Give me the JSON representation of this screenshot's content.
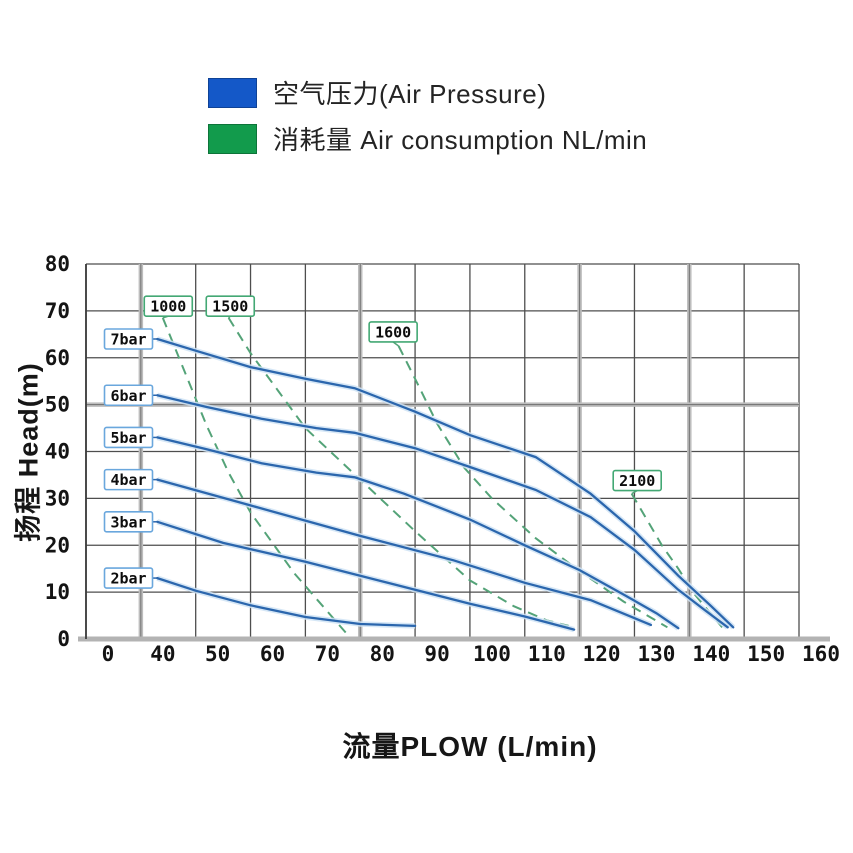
{
  "legend": {
    "items": [
      {
        "swatch_color": "#1458c8",
        "label": "空气压力(Air Pressure)"
      },
      {
        "swatch_color": "#129b4c",
        "label": "消耗量 Air consumption NL/min"
      }
    ]
  },
  "chart_data": {
    "type": "line",
    "title": "",
    "xlabel": "流量PLOW (L/min)",
    "ylabel": "扬程 Head(m)",
    "x_ticks": [
      0,
      40,
      50,
      60,
      70,
      80,
      90,
      100,
      110,
      120,
      130,
      140,
      150,
      160
    ],
    "y_ticks": [
      0,
      10,
      20,
      30,
      40,
      50,
      60,
      70,
      80
    ],
    "ylim": [
      0,
      80
    ],
    "x_axis_note": "non-linear axis: 0-40 occupies one grid interval, then 10 L/min per interval",
    "grid": "on",
    "legend_position": "top-left",
    "series": [
      {
        "name": "7bar",
        "kind": "pressure",
        "label_pos": [
          31,
          64
        ],
        "points": [
          [
            43,
            64
          ],
          [
            50,
            61.5
          ],
          [
            60,
            58
          ],
          [
            70,
            55.5
          ],
          [
            79,
            53.5
          ],
          [
            90,
            48.5
          ],
          [
            100,
            43.5
          ],
          [
            112,
            38.8
          ],
          [
            122,
            31
          ],
          [
            130,
            23
          ],
          [
            138,
            13.5
          ],
          [
            144,
            7
          ],
          [
            148,
            2.5
          ]
        ]
      },
      {
        "name": "6bar",
        "kind": "pressure",
        "label_pos": [
          31,
          52
        ],
        "points": [
          [
            43,
            52
          ],
          [
            52,
            49.5
          ],
          [
            62,
            47
          ],
          [
            72,
            45
          ],
          [
            79,
            44
          ],
          [
            90,
            40.7
          ],
          [
            100,
            36.7
          ],
          [
            112,
            31.8
          ],
          [
            122,
            26
          ],
          [
            130,
            19
          ],
          [
            138,
            10.5
          ],
          [
            143,
            6
          ],
          [
            147,
            2.5
          ]
        ]
      },
      {
        "name": "5bar",
        "kind": "pressure",
        "label_pos": [
          31,
          43
        ],
        "points": [
          [
            43,
            43
          ],
          [
            52,
            40.5
          ],
          [
            62,
            37.5
          ],
          [
            72,
            35.5
          ],
          [
            79,
            34.5
          ],
          [
            88,
            31
          ],
          [
            100,
            25.5
          ],
          [
            110,
            20
          ],
          [
            120,
            14.7
          ],
          [
            128,
            9.5
          ],
          [
            134,
            5.5
          ],
          [
            138,
            2.3
          ]
        ]
      },
      {
        "name": "4bar",
        "kind": "pressure",
        "label_pos": [
          31,
          34
        ],
        "points": [
          [
            43,
            34
          ],
          [
            60,
            28.5
          ],
          [
            80,
            22
          ],
          [
            97,
            16.8
          ],
          [
            110,
            12
          ],
          [
            122,
            8.3
          ],
          [
            133,
            3
          ]
        ]
      },
      {
        "name": "3bar",
        "kind": "pressure",
        "label_pos": [
          31,
          25
        ],
        "points": [
          [
            43,
            25
          ],
          [
            55,
            20.5
          ],
          [
            70,
            16.5
          ],
          [
            85,
            12
          ],
          [
            100,
            7.5
          ],
          [
            110,
            4.8
          ],
          [
            119,
            2
          ]
        ]
      },
      {
        "name": "2bar",
        "kind": "pressure",
        "label_pos": [
          31,
          13
        ],
        "points": [
          [
            43,
            13
          ],
          [
            50,
            10.3
          ],
          [
            60,
            7.2
          ],
          [
            70,
            4.7
          ],
          [
            80,
            3.2
          ],
          [
            90,
            2.8
          ]
        ]
      },
      {
        "name": "1000",
        "kind": "consumption",
        "label_pos": [
          45,
          71
        ],
        "points": [
          [
            44,
            68.5
          ],
          [
            48,
            57
          ],
          [
            52,
            45.5
          ],
          [
            56,
            35.5
          ],
          [
            60,
            27
          ],
          [
            68,
            14
          ],
          [
            78,
            0.5
          ]
        ]
      },
      {
        "name": "1500",
        "kind": "consumption",
        "label_pos": [
          56.3,
          71
        ],
        "points": [
          [
            56,
            68.5
          ],
          [
            60,
            61
          ],
          [
            65,
            53
          ],
          [
            70,
            45
          ],
          [
            80,
            34
          ],
          [
            90,
            23
          ],
          [
            100,
            12.5
          ],
          [
            108,
            7
          ],
          [
            114,
            4
          ],
          [
            118,
            2.8
          ]
        ]
      },
      {
        "name": "1600",
        "kind": "consumption",
        "label_pos": [
          86,
          65.5
        ],
        "points": [
          [
            87,
            62.5
          ],
          [
            90,
            55.5
          ],
          [
            94,
            46
          ],
          [
            99,
            36.5
          ],
          [
            104,
            30
          ],
          [
            112,
            21.5
          ],
          [
            120,
            14.5
          ],
          [
            128,
            8
          ],
          [
            136,
            2.5
          ]
        ]
      },
      {
        "name": "2100",
        "kind": "consumption",
        "label_pos": [
          130.5,
          33.8
        ],
        "points": [
          [
            129.5,
            31
          ],
          [
            132,
            26
          ],
          [
            135,
            20
          ],
          [
            138,
            15
          ],
          [
            141,
            9.5
          ],
          [
            146,
            2.5
          ]
        ]
      }
    ],
    "colors": {
      "pressure_line": "#2b66ad",
      "pressure_halo": "#cfe3f5",
      "consumption_line": "#54a378",
      "grid": "#4e4e4e",
      "axis_emphasis": "#bdbdbd",
      "label_border_pressure": "#6aa7dd",
      "label_border_consumption": "#43a874",
      "tick_text": "#141414"
    }
  }
}
